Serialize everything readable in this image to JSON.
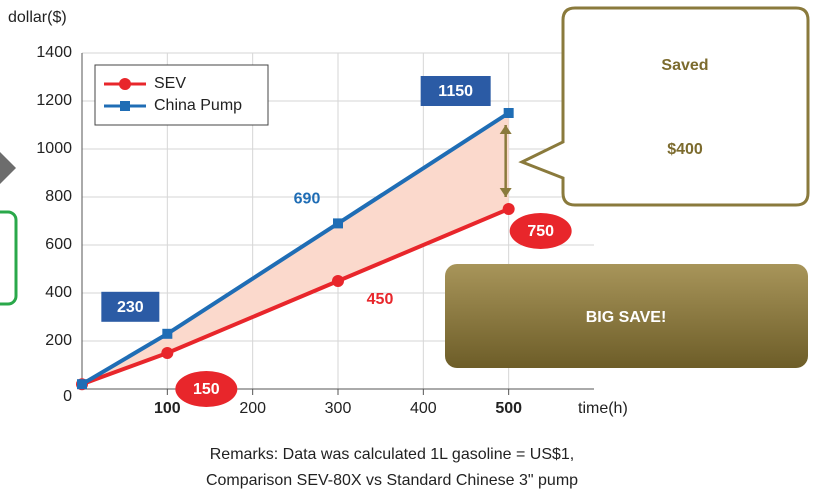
{
  "chart_data": {
    "type": "line",
    "y_label": "dollar($)",
    "x_label": "time(h)",
    "x": [
      0,
      100,
      300,
      500
    ],
    "series": [
      {
        "name": "SEV",
        "color": "#e8262b",
        "marker": "circle",
        "values": [
          20,
          150,
          450,
          750
        ],
        "value_labels": [
          null,
          "150",
          "450",
          "750"
        ]
      },
      {
        "name": "China Pump",
        "color": "#1f6db5",
        "marker": "square",
        "values": [
          20,
          230,
          690,
          1150
        ],
        "value_labels": [
          null,
          "230",
          "690",
          "1150"
        ]
      }
    ],
    "xlim": [
      0,
      600
    ],
    "xticks": [
      100,
      200,
      300,
      400,
      500
    ],
    "emphasized_xticks": [
      100,
      500
    ],
    "ylim": [
      0,
      1400
    ],
    "yticks": [
      0,
      200,
      400,
      600,
      800,
      1000,
      1200,
      1400
    ],
    "grid": true,
    "legend": "upper left",
    "fill_between": "#fbd9cc",
    "callout": {
      "line1": "Saved",
      "line2": "$400"
    },
    "banner": "BIG SAVE!",
    "remarks": [
      "Remarks: Data was calculated 1L gasoline = US$1,",
      "Comparison SEV-80X vs Standard Chinese 3\" pump"
    ]
  }
}
